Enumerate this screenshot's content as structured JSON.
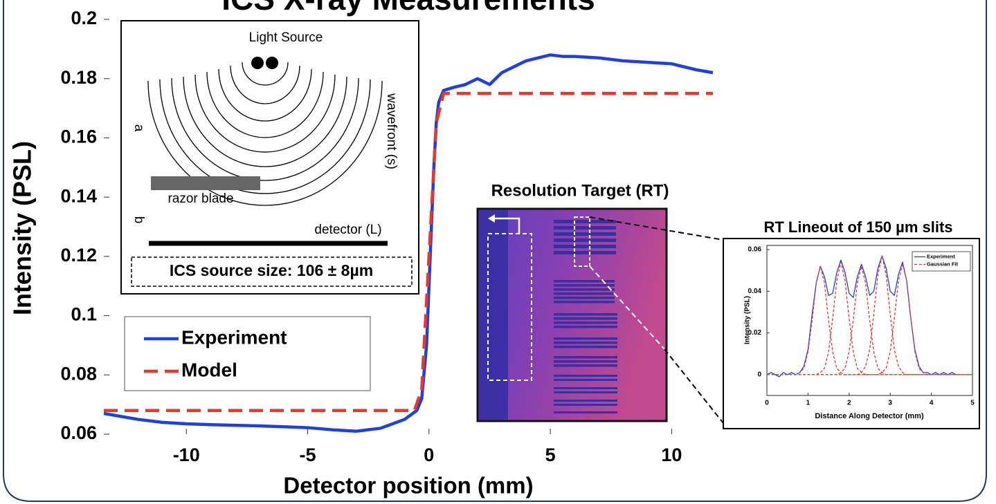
{
  "chart_data": [
    {
      "type": "line",
      "title": "ICS X-ray Measurements",
      "x_label": "Detector position (mm)",
      "y_label": "Intensity (PSL)",
      "xlim": [
        -13.4,
        11.7
      ],
      "ylim": [
        0.06,
        0.2
      ],
      "xticks": [
        -10,
        -5,
        0,
        5,
        10
      ],
      "yticks": [
        0.06,
        0.08,
        0.1,
        0.12,
        0.14,
        0.16,
        0.18,
        0.2
      ],
      "grid": false,
      "legend": "center left",
      "series": [
        {
          "name": "Experiment",
          "color": "#1f3fe0",
          "dashed": false,
          "x": [
            -13.4,
            -12,
            -11,
            -10,
            -9,
            -8,
            -7,
            -6,
            -5,
            -4,
            -3,
            -2,
            -1.5,
            -1,
            -0.5,
            -0.3,
            -0.1,
            0,
            0.1,
            0.2,
            0.3,
            0.4,
            0.6,
            1,
            1.5,
            2,
            2.5,
            3,
            3.5,
            4,
            4.5,
            5,
            5.5,
            6,
            7,
            8,
            9,
            10,
            11,
            11.7
          ],
          "values": [
            0.067,
            0.065,
            0.064,
            0.0635,
            0.0632,
            0.063,
            0.0628,
            0.0625,
            0.0622,
            0.0615,
            0.061,
            0.062,
            0.0635,
            0.065,
            0.068,
            0.072,
            0.09,
            0.11,
            0.13,
            0.15,
            0.165,
            0.172,
            0.176,
            0.177,
            0.178,
            0.18,
            0.178,
            0.182,
            0.184,
            0.186,
            0.187,
            0.188,
            0.1875,
            0.1875,
            0.187,
            0.186,
            0.1855,
            0.185,
            0.183,
            0.182
          ]
        },
        {
          "name": "Model",
          "color": "#e8372c",
          "dashed": true,
          "x": [
            -13.4,
            -0.6,
            -0.3,
            0,
            0.3,
            0.6,
            11.7
          ],
          "values": [
            0.068,
            0.068,
            0.075,
            0.12,
            0.165,
            0.175,
            0.175
          ]
        }
      ]
    },
    {
      "type": "line",
      "title": "RT Lineout of 150 µm slits",
      "x_label": "Distance Along Detector (mm)",
      "y_label": "Intensity (PSL)",
      "xlim": [
        0,
        5
      ],
      "ylim": [
        -0.01,
        0.062
      ],
      "xticks": [
        0,
        1,
        2,
        3,
        4,
        5
      ],
      "yticks": [
        0,
        0.02,
        0.04,
        0.06
      ],
      "grid": false,
      "legend": "upper right",
      "x": [
        0,
        0.1,
        0.2,
        0.3,
        0.4,
        0.5,
        0.6,
        0.7,
        0.8,
        0.9,
        1.0,
        1.1,
        1.2,
        1.3,
        1.4,
        1.5,
        1.6,
        1.7,
        1.8,
        1.9,
        2.0,
        2.1,
        2.2,
        2.3,
        2.4,
        2.5,
        2.6,
        2.7,
        2.8,
        2.9,
        3.0,
        3.1,
        3.2,
        3.3,
        3.4,
        3.5,
        3.6,
        3.7,
        3.8,
        3.9,
        4.0,
        4.1,
        4.2,
        4.3,
        4.4,
        4.5,
        4.6
      ],
      "series": [
        {
          "name": "Experiment",
          "color": "#1f3fe0",
          "dashed": false,
          "values": [
            0,
            0.001,
            0,
            -0.001,
            0.001,
            0,
            0.001,
            0,
            0.001,
            0.004,
            0.012,
            0.029,
            0.044,
            0.052,
            0.047,
            0.038,
            0.039,
            0.049,
            0.055,
            0.049,
            0.039,
            0.037,
            0.047,
            0.053,
            0.047,
            0.038,
            0.04,
            0.051,
            0.057,
            0.051,
            0.04,
            0.038,
            0.048,
            0.054,
            0.045,
            0.027,
            0.012,
            0.004,
            0.001,
            0.001,
            0,
            0.001,
            0,
            0.001,
            0,
            0.001,
            0
          ]
        },
        {
          "name": "Gaussian Fit",
          "color": "#e8372c",
          "dashed": true,
          "components": [
            {
              "x": [
                0,
                0.7,
                0.8,
                0.9,
                1.0,
                1.1,
                1.2,
                1.3,
                1.4,
                1.5,
                1.6,
                1.7,
                1.8,
                1.9,
                5
              ],
              "values": [
                0,
                0,
                0.001,
                0.003,
                0.011,
                0.026,
                0.044,
                0.052,
                0.044,
                0.026,
                0.011,
                0.003,
                0.001,
                0,
                0
              ]
            },
            {
              "x": [
                0,
                1.2,
                1.3,
                1.4,
                1.5,
                1.6,
                1.7,
                1.8,
                1.9,
                2.0,
                2.1,
                2.2,
                2.3,
                2.4,
                5
              ],
              "values": [
                0,
                0,
                0.001,
                0.003,
                0.011,
                0.027,
                0.045,
                0.054,
                0.045,
                0.027,
                0.011,
                0.003,
                0.001,
                0,
                0
              ]
            },
            {
              "x": [
                0,
                1.7,
                1.8,
                1.9,
                2.0,
                2.1,
                2.2,
                2.3,
                2.4,
                2.5,
                2.6,
                2.7,
                2.8,
                2.9,
                5
              ],
              "values": [
                0,
                0,
                0.001,
                0.003,
                0.011,
                0.026,
                0.044,
                0.052,
                0.044,
                0.026,
                0.011,
                0.003,
                0.001,
                0,
                0
              ]
            },
            {
              "x": [
                0,
                2.2,
                2.3,
                2.4,
                2.5,
                2.6,
                2.7,
                2.8,
                2.9,
                3.0,
                3.1,
                3.2,
                3.3,
                3.4,
                5
              ],
              "values": [
                0,
                0,
                0.001,
                0.004,
                0.012,
                0.029,
                0.048,
                0.057,
                0.048,
                0.029,
                0.012,
                0.004,
                0.001,
                0,
                0
              ]
            },
            {
              "x": [
                0,
                2.7,
                2.8,
                2.9,
                3.0,
                3.1,
                3.2,
                3.3,
                3.4,
                3.5,
                3.6,
                3.7,
                3.8,
                3.9,
                5
              ],
              "values": [
                0,
                0,
                0.001,
                0.003,
                0.011,
                0.027,
                0.045,
                0.053,
                0.045,
                0.027,
                0.011,
                0.003,
                0.001,
                0,
                0
              ]
            }
          ]
        }
      ]
    }
  ],
  "inset_diagram": {
    "light_source": "Light Source",
    "wavefront": "wavefront (s)",
    "a": "a",
    "b": "b",
    "razor_blade": "razor blade",
    "detector": "detector (L)",
    "source_size": "ICS source size: 106 ± 8µm"
  },
  "resolution_target": {
    "title": "Resolution Target (RT)"
  }
}
